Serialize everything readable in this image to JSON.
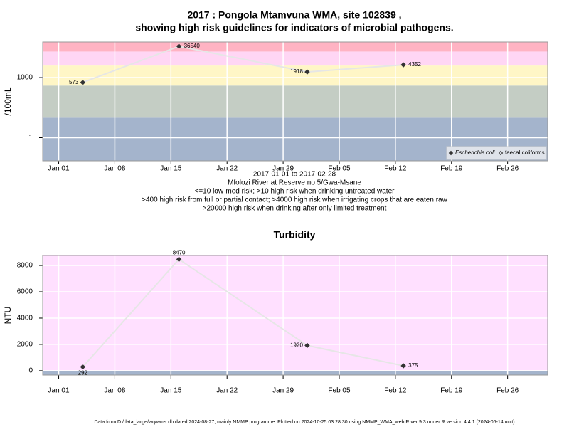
{
  "chart_data": [
    {
      "type": "line",
      "title": [
        "2017 : Pongola Mtamvuna WMA, site 102839 ,",
        "showing high risk guidelines for indicators of microbial pathogens."
      ],
      "ylabel": "/100mL",
      "notes": [
        "2017-01-01 to 2017-02-28",
        "Mfolozi River at Reserve no 5/Gwa-Msane",
        "<=10 low-med risk; >10 high risk when drinking untreated water",
        ">400 high risk from full or partial contact; >4000 high risk when irrigating crops that are eaten raw",
        ">20000 high risk when drinking after only limited treatment"
      ],
      "x": [
        "2017-01-04",
        "2017-01-16",
        "2017-02-01",
        "2017-02-13"
      ],
      "series": [
        {
          "name": "Escherichia coli",
          "color": "#333333",
          "marker": "filled",
          "values": [
            573,
            36540,
            1918,
            4352
          ]
        },
        {
          "name": "faecal coliforms",
          "color": "#333333",
          "marker": "open",
          "values": [
            null,
            null,
            null,
            null
          ]
        }
      ],
      "line_color": "#e6e6e6",
      "log_scale": true,
      "ylim": [
        0.07,
        60000
      ],
      "yticks": [
        1,
        1000
      ],
      "xlim": [
        "2016-12-30",
        "2017-03-03"
      ],
      "xticks": [
        {
          "value": "2017-01-01",
          "label": "Jan 01"
        },
        {
          "value": "2017-01-08",
          "label": "Jan 08"
        },
        {
          "value": "2017-01-15",
          "label": "Jan 15"
        },
        {
          "value": "2017-01-22",
          "label": "Jan 22"
        },
        {
          "value": "2017-01-29",
          "label": "Jan 29"
        },
        {
          "value": "2017-02-05",
          "label": "Feb 05"
        },
        {
          "value": "2017-02-12",
          "label": "Feb 12"
        },
        {
          "value": "2017-02-19",
          "label": "Feb 19"
        },
        {
          "value": "2017-02-26",
          "label": "Feb 26"
        }
      ],
      "grid": true,
      "legend": "bottom-right",
      "bands": [
        {
          "to": 10,
          "color": "#a4b4cc"
        },
        {
          "to": 400,
          "color": "#c4cdc4"
        },
        {
          "to": 4000,
          "color": "#fff6c6"
        },
        {
          "to": 20000,
          "color": "#ffd6f4"
        },
        {
          "to": 60000,
          "color": "#ffb3c3"
        }
      ]
    },
    {
      "type": "line",
      "title": "Turbidity",
      "ylabel": "NTU",
      "x": [
        "2017-01-04",
        "2017-01-16",
        "2017-02-01",
        "2017-02-13"
      ],
      "series": [
        {
          "name": "Turbidity",
          "color": "#333333",
          "marker": "filled",
          "values": [
            292,
            8470,
            1920,
            375
          ]
        }
      ],
      "line_color": "#e6e6e6",
      "log_scale": false,
      "ylim": [
        -330,
        8760
      ],
      "yticks": [
        0,
        2000,
        4000,
        6000,
        8000
      ],
      "xlim": [
        "2016-12-30",
        "2017-03-03"
      ],
      "xticks": [
        {
          "value": "2017-01-01",
          "label": "Jan 01"
        },
        {
          "value": "2017-01-08",
          "label": "Jan 08"
        },
        {
          "value": "2017-01-15",
          "label": "Jan 15"
        },
        {
          "value": "2017-01-22",
          "label": "Jan 22"
        },
        {
          "value": "2017-01-29",
          "label": "Jan 29"
        },
        {
          "value": "2017-02-05",
          "label": "Feb 05"
        },
        {
          "value": "2017-02-12",
          "label": "Feb 12"
        },
        {
          "value": "2017-02-19",
          "label": "Feb 19"
        },
        {
          "value": "2017-02-26",
          "label": "Feb 26"
        }
      ],
      "grid": true,
      "bands": [
        {
          "to": 0,
          "color": "#a4b4cc"
        },
        {
          "to": 8760,
          "color": "#ffe0ff"
        }
      ]
    }
  ],
  "footer": "Data from D:/data_large/wq/wms.db dated 2024-08-27, mainly NMMP programme. Plotted on 2024-10-25 03:28:30 using NMMP_WMA_web.R ver 9.3 under R version 4.4.1 (2024-06-14 ucrt)"
}
